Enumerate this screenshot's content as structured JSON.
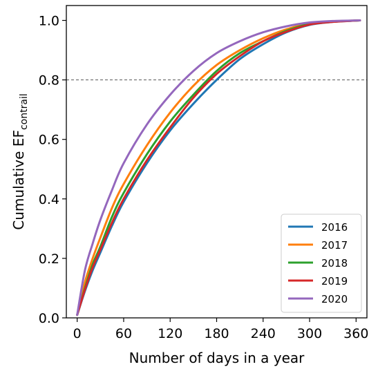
{
  "chart_data": {
    "type": "line",
    "title": "",
    "xlabel": "Number of days in a year",
    "ylabel_main": "Cumulative EF",
    "ylabel_sub": "contrail",
    "xlim": [
      -14,
      374
    ],
    "ylim": [
      0.0,
      1.05
    ],
    "xticks": [
      0,
      60,
      120,
      180,
      240,
      300,
      360
    ],
    "yticks": [
      0.0,
      0.2,
      0.4,
      0.6,
      0.8,
      1.0
    ],
    "ytick_labels": [
      "0.0",
      "0.2",
      "0.4",
      "0.6",
      "0.8",
      "1.0"
    ],
    "grid": false,
    "reference_line": {
      "y": 0.8,
      "style": "dashed",
      "color": "#555555"
    },
    "legend_position": "lower-right",
    "x": [
      0,
      10,
      20,
      30,
      45,
      60,
      90,
      120,
      150,
      180,
      210,
      240,
      270,
      300,
      330,
      365
    ],
    "series": [
      {
        "name": "2016",
        "color": "#1f77b4",
        "values": [
          0.01,
          0.09,
          0.16,
          0.22,
          0.31,
          0.39,
          0.52,
          0.63,
          0.72,
          0.8,
          0.87,
          0.92,
          0.96,
          0.985,
          0.995,
          1.0
        ]
      },
      {
        "name": "2017",
        "color": "#ff7f0e",
        "values": [
          0.01,
          0.12,
          0.2,
          0.27,
          0.37,
          0.45,
          0.58,
          0.69,
          0.78,
          0.85,
          0.9,
          0.94,
          0.97,
          0.99,
          0.997,
          1.0
        ]
      },
      {
        "name": "2018",
        "color": "#2ca02c",
        "values": [
          0.01,
          0.1,
          0.18,
          0.24,
          0.34,
          0.42,
          0.55,
          0.66,
          0.75,
          0.83,
          0.89,
          0.93,
          0.965,
          0.988,
          0.996,
          1.0
        ]
      },
      {
        "name": "2019",
        "color": "#d62728",
        "values": [
          0.01,
          0.095,
          0.17,
          0.23,
          0.32,
          0.4,
          0.53,
          0.64,
          0.74,
          0.82,
          0.88,
          0.93,
          0.962,
          0.986,
          0.995,
          1.0
        ]
      },
      {
        "name": "2020",
        "color": "#9467bd",
        "values": [
          0.01,
          0.16,
          0.25,
          0.33,
          0.43,
          0.52,
          0.65,
          0.75,
          0.83,
          0.89,
          0.93,
          0.96,
          0.98,
          0.993,
          0.998,
          1.0
        ]
      }
    ]
  }
}
